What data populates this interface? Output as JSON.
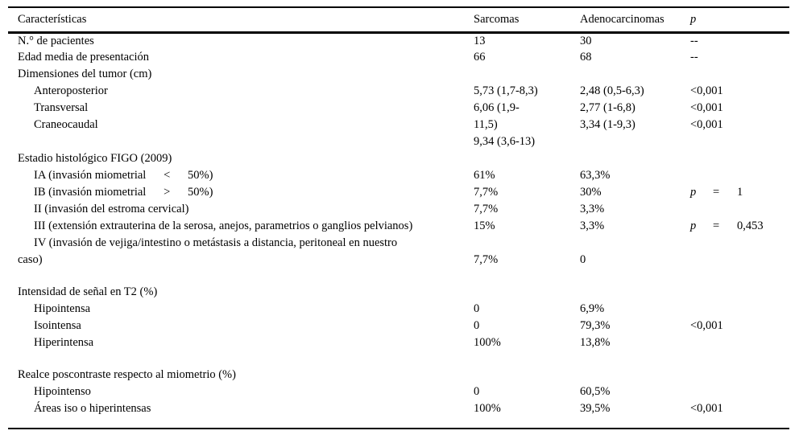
{
  "colors": {
    "text": "#000000",
    "background": "#ffffff",
    "rule": "#000000"
  },
  "table": {
    "columns": [
      {
        "label": "Características"
      },
      {
        "label": "Sarcomas"
      },
      {
        "label": "Adenocarcinomas"
      },
      {
        "label": "p"
      }
    ],
    "rows": [
      {
        "label": "N.° de pacientes",
        "indent": 0,
        "sarcomas": "13",
        "adenocarcinomas": "30",
        "p": "--"
      },
      {
        "label": "Edad media de presentación",
        "indent": 0,
        "sarcomas": "66",
        "adenocarcinomas": "68",
        "p": "--"
      },
      {
        "label": "Dimensiones del tumor (cm)",
        "indent": 0,
        "sarcomas": "",
        "adenocarcinomas": "",
        "p": ""
      },
      {
        "label": "Anteroposterior",
        "indent": 1,
        "sarcomas": "5,73 (1,7-8,3)",
        "adenocarcinomas": "2,48 (0,5-6,3)",
        "p": "<0,001"
      },
      {
        "label": "Transversal",
        "indent": 1,
        "sarcomas": "6,06 (1,9-",
        "adenocarcinomas": "2,77 (1-6,8)",
        "p": "<0,001"
      },
      {
        "label": "Craneocaudal",
        "indent": 1,
        "sarcomas": "11,5)",
        "adenocarcinomas": "3,34 (1-9,3)",
        "p": "<0,001"
      },
      {
        "label": "",
        "indent": 0,
        "sarcomas": "9,34 (3,6-13)",
        "adenocarcinomas": "",
        "p": ""
      },
      {
        "label": "Estadio histológico FIGO (2009)",
        "indent": 0,
        "sarcomas": "",
        "adenocarcinomas": "",
        "p": ""
      },
      {
        "label": "IA (invasión miometrial  <  50%)",
        "indent": 1,
        "sarcomas": "61%",
        "adenocarcinomas": "63,3%",
        "p": ""
      },
      {
        "label": "IB (invasión miometrial  >  50%)",
        "indent": 1,
        "sarcomas": "7,7%",
        "adenocarcinomas": "30%",
        "p": {
          "symbol": "p",
          "operator": "=",
          "value": "1"
        }
      },
      {
        "label": "II (invasión del estroma cervical)",
        "indent": 1,
        "sarcomas": "7,7%",
        "adenocarcinomas": "3,3%",
        "p": ""
      },
      {
        "label": "III (extensión extrauterina de la serosa, anejos, parametrios o ganglios pelvianos)",
        "indent": 1,
        "sarcomas": "15%",
        "adenocarcinomas": "3,3%",
        "p": {
          "symbol": "p",
          "operator": "=",
          "value": "0,453"
        }
      },
      {
        "label": "IV (invasión de vejiga/intestino o metástasis a distancia, peritoneal en nuestro",
        "indent": 1,
        "sarcomas": "",
        "adenocarcinomas": "",
        "p": ""
      },
      {
        "label": "caso)",
        "indent": 0,
        "sarcomas": "7,7%",
        "adenocarcinomas": "0",
        "p": ""
      },
      {
        "spacer": true
      },
      {
        "label": "Intensidad de señal en T2 (%)",
        "indent": 0,
        "sarcomas": "",
        "adenocarcinomas": "",
        "p": ""
      },
      {
        "label": "Hipointensa",
        "indent": 1,
        "sarcomas": "0",
        "adenocarcinomas": "6,9%",
        "p": ""
      },
      {
        "label": "Isointensa",
        "indent": 1,
        "sarcomas": "0",
        "adenocarcinomas": "79,3%",
        "p": "<0,001"
      },
      {
        "label": "Hiperintensa",
        "indent": 1,
        "sarcomas": "100%",
        "adenocarcinomas": "13,8%",
        "p": ""
      },
      {
        "spacer": true
      },
      {
        "label": "Realce poscontraste respecto al miometrio (%)",
        "indent": 0,
        "sarcomas": "",
        "adenocarcinomas": "",
        "p": ""
      },
      {
        "label": "Hipointenso",
        "indent": 1,
        "sarcomas": "0",
        "adenocarcinomas": "60,5%",
        "p": ""
      },
      {
        "label": "Áreas iso o hiperintensas",
        "indent": 1,
        "sarcomas": "100%",
        "adenocarcinomas": "39,5%",
        "p": "<0,001"
      }
    ]
  }
}
